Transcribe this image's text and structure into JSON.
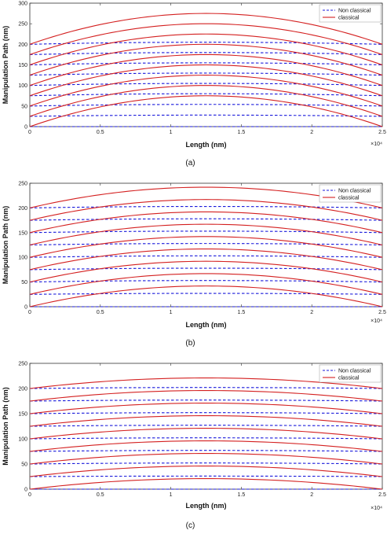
{
  "chart_data": [
    {
      "type": "line",
      "panel": "(a)",
      "caption": "(a)",
      "xlabel": "Length (nm)",
      "ylabel": "Manipulation Path (nm)",
      "x_exponent": "×10⁴",
      "xlim": [
        0,
        2.5
      ],
      "ylim": [
        0,
        300
      ],
      "xticks": [
        "0",
        "0.5",
        "1",
        "1.5",
        "2",
        "2.5"
      ],
      "yticks": [
        "0",
        "50",
        "100",
        "150",
        "200",
        "250",
        "300"
      ],
      "legend": {
        "position": "top-right",
        "entries": [
          "Non classical",
          "classical"
        ]
      },
      "series": [
        {
          "name": "Non classical",
          "style": "dashed",
          "color": "#1a1adb",
          "baselines": [
            0,
            25,
            50,
            75,
            100,
            125,
            150,
            175,
            200
          ],
          "peak_rise": [
            0,
            3,
            4,
            5,
            5,
            5,
            5,
            5,
            5
          ]
        },
        {
          "name": "classical",
          "style": "solid",
          "color": "#d42020",
          "baselines": [
            0,
            25,
            50,
            75,
            100,
            125,
            150,
            175,
            200
          ],
          "peak_rise": [
            75,
            75,
            75,
            75,
            75,
            75,
            75,
            75,
            75
          ]
        }
      ]
    },
    {
      "type": "line",
      "panel": "(b)",
      "caption": "(b)",
      "xlabel": "Length (nm)",
      "ylabel": "Manipulation Path (nm)",
      "x_exponent": "×10⁴",
      "xlim": [
        0,
        2.5
      ],
      "ylim": [
        0,
        250
      ],
      "xticks": [
        "0",
        "0.5",
        "1",
        "1.5",
        "2",
        "2.5"
      ],
      "yticks": [
        "0",
        "50",
        "100",
        "150",
        "200",
        "250"
      ],
      "legend": {
        "position": "top-right",
        "entries": [
          "Non classical",
          "classical"
        ]
      },
      "series": [
        {
          "name": "Non classical",
          "style": "dashed",
          "color": "#1a1adb",
          "baselines": [
            0,
            25,
            50,
            75,
            100,
            125,
            150,
            175,
            200
          ],
          "peak_rise": [
            0,
            2,
            3,
            3,
            3,
            3,
            3,
            3,
            3
          ]
        },
        {
          "name": "classical",
          "style": "solid",
          "color": "#d42020",
          "baselines": [
            0,
            25,
            50,
            75,
            100,
            125,
            150,
            175,
            200
          ],
          "peak_rise": [
            42,
            42,
            42,
            42,
            42,
            42,
            42,
            42,
            42
          ]
        }
      ]
    },
    {
      "type": "line",
      "panel": "(c)",
      "caption": "(c)",
      "xlabel": "Length (nm)",
      "ylabel": "Manipulation Path (nm)",
      "x_exponent": "×10⁴",
      "xlim": [
        0,
        2.5
      ],
      "ylim": [
        0,
        250
      ],
      "xticks": [
        "0",
        "0.5",
        "1",
        "1.5",
        "2",
        "2.5"
      ],
      "yticks": [
        "0",
        "50",
        "100",
        "150",
        "200",
        "250"
      ],
      "legend": {
        "position": "top-right",
        "entries": [
          "Non classical",
          "classical"
        ]
      },
      "series": [
        {
          "name": "Non classical",
          "style": "dashed",
          "color": "#1a1adb",
          "baselines": [
            0,
            25,
            50,
            75,
            100,
            125,
            150,
            175,
            200
          ],
          "peak_rise": [
            0,
            1,
            2,
            2,
            2,
            2,
            2,
            2,
            2
          ]
        },
        {
          "name": "classical",
          "style": "solid",
          "color": "#d42020",
          "baselines": [
            0,
            25,
            50,
            75,
            100,
            125,
            150,
            175,
            200
          ],
          "peak_rise": [
            21,
            21,
            21,
            21,
            21,
            21,
            21,
            21,
            21
          ]
        }
      ]
    }
  ]
}
